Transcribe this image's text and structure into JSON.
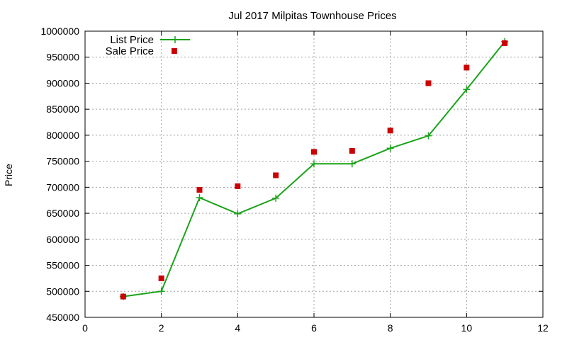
{
  "chart_data": {
    "type": "line",
    "title": "Jul 2017 Milpitas Townhouse Prices",
    "xlabel": "",
    "ylabel": "Price",
    "xlim": [
      0,
      12
    ],
    "ylim": [
      450000,
      1000000
    ],
    "xticks": [
      0,
      2,
      4,
      6,
      8,
      10,
      12
    ],
    "yticks": [
      450000,
      500000,
      550000,
      600000,
      650000,
      700000,
      750000,
      800000,
      850000,
      900000,
      950000,
      1000000
    ],
    "grid": true,
    "legend_position": "top-left",
    "series": [
      {
        "name": "List Price",
        "style": "line-with-plus-markers",
        "color": "#1aa31a",
        "x": [
          1,
          2,
          3,
          4,
          5,
          6,
          7,
          8,
          9,
          10,
          11
        ],
        "y": [
          490000,
          500000,
          680000,
          649000,
          679000,
          745000,
          745000,
          775000,
          799000,
          888000,
          980000
        ]
      },
      {
        "name": "Sale Price",
        "style": "square-markers",
        "color": "#cc0000",
        "x": [
          1,
          2,
          3,
          4,
          5,
          6,
          7,
          8,
          9,
          10,
          11
        ],
        "y": [
          490000,
          525000,
          695000,
          702000,
          723000,
          768000,
          770000,
          809000,
          900000,
          930000,
          977000
        ]
      }
    ]
  }
}
